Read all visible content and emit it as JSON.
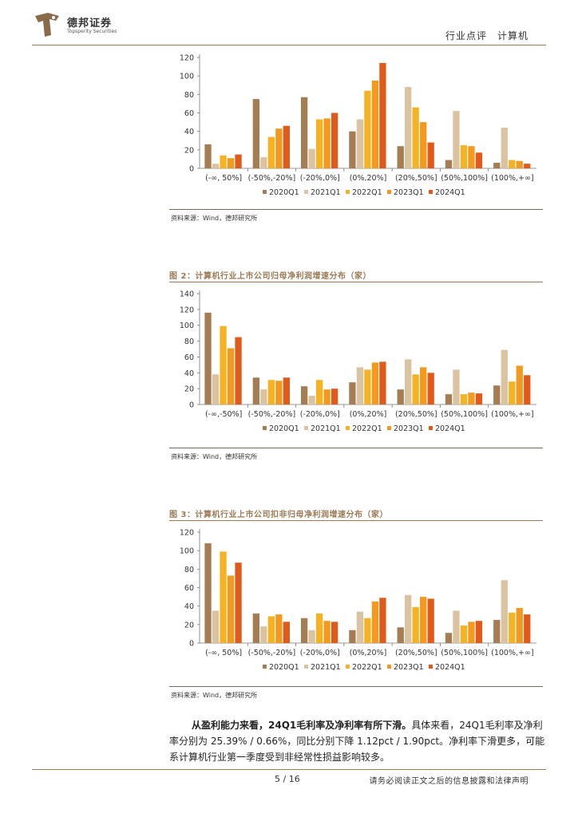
{
  "header": {
    "company_cn": "德邦证券",
    "company_en": "Topsperity Securities",
    "right": "行业点评　计算机"
  },
  "figures": [
    {
      "title": "",
      "source": "资料来源：Wind，德邦研究所"
    },
    {
      "title": "图 2：计算机行业上市公司归母净利润增速分布（家）",
      "source": "资料来源：Wind，德邦研究所"
    },
    {
      "title": "图 3：计算机行业上市公司扣非归母净利润增速分布（家）",
      "source": "资料来源：Wind，德邦研究所"
    }
  ],
  "colors": {
    "2020Q1": "#a67c52",
    "2021Q1": "#d9c3a0",
    "2022Q1": "#f5b323",
    "2023Q1": "#f39a1e",
    "2024Q1": "#e05a1b",
    "accent": "#9b7a55"
  },
  "chart_data": [
    {
      "type": "bar",
      "categories": [
        "(-∞, 50%]",
        "(-50%,-20%]",
        "(-20%,0%]",
        "(0%,20%]",
        "(20%,50%]",
        "(50%,100%]",
        "(100%,+∞]"
      ],
      "ylim": [
        0,
        120
      ],
      "yticks": [
        0,
        20,
        40,
        60,
        80,
        100,
        120
      ],
      "legend_position": "bottom",
      "series": [
        {
          "name": "2020Q1",
          "values": [
            26,
            75,
            77,
            40,
            24,
            9,
            6
          ]
        },
        {
          "name": "2021Q1",
          "values": [
            5,
            12,
            21,
            53,
            88,
            62,
            44
          ]
        },
        {
          "name": "2022Q1",
          "values": [
            14,
            34,
            53,
            84,
            66,
            25,
            9
          ]
        },
        {
          "name": "2023Q1",
          "values": [
            11,
            43,
            54,
            95,
            50,
            24,
            8
          ]
        },
        {
          "name": "2024Q1",
          "values": [
            15,
            46,
            60,
            114,
            28,
            17,
            5
          ]
        }
      ]
    },
    {
      "type": "bar",
      "categories": [
        "(-∞,-50%]",
        "(-50%,-20%]",
        "(-20%,0%]",
        "(0%,20%]",
        "(20%,50%]",
        "(50%,100%]",
        "(100%,+∞]"
      ],
      "ylim": [
        0,
        140
      ],
      "yticks": [
        0,
        20,
        40,
        60,
        80,
        100,
        120,
        140
      ],
      "legend_position": "bottom",
      "series": [
        {
          "name": "2020Q1",
          "values": [
            116,
            34,
            23,
            28,
            19,
            13,
            24
          ]
        },
        {
          "name": "2021Q1",
          "values": [
            38,
            19,
            11,
            47,
            57,
            44,
            69
          ]
        },
        {
          "name": "2022Q1",
          "values": [
            99,
            31,
            31,
            44,
            38,
            13,
            29
          ]
        },
        {
          "name": "2023Q1",
          "values": [
            71,
            30,
            19,
            53,
            47,
            15,
            49
          ]
        },
        {
          "name": "2024Q1",
          "values": [
            85,
            34,
            20,
            54,
            40,
            14,
            37
          ]
        }
      ]
    },
    {
      "type": "bar",
      "categories": [
        "(-∞, 50%]",
        "(-50%,-20%]",
        "(-20%,0%]",
        "(0%,20%]",
        "(20%,50%]",
        "(50%,100%]",
        "(100%,+∞]"
      ],
      "ylim": [
        0,
        120
      ],
      "yticks": [
        0,
        20,
        40,
        60,
        80,
        100,
        120
      ],
      "legend_position": "bottom",
      "series": [
        {
          "name": "2020Q1",
          "values": [
            108,
            32,
            27,
            14,
            17,
            11,
            25
          ]
        },
        {
          "name": "2021Q1",
          "values": [
            35,
            18,
            14,
            34,
            52,
            35,
            68
          ]
        },
        {
          "name": "2022Q1",
          "values": [
            99,
            29,
            32,
            27,
            39,
            19,
            33
          ]
        },
        {
          "name": "2023Q1",
          "values": [
            73,
            31,
            24,
            45,
            50,
            23,
            38
          ]
        },
        {
          "name": "2024Q1",
          "values": [
            87,
            23,
            23,
            49,
            48,
            24,
            31
          ]
        }
      ]
    }
  ],
  "body": {
    "bold": "从盈利能力来看，24Q1毛利率及净利率有所下滑。",
    "text": "具体来看，24Q1毛利率及净利率分别为 25.39% / 0.66%，同比分别下降 1.12pct / 1.90pct。净利率下滑更多，可能系计算机行业第一季度受到非经常性损益影响较多。"
  },
  "footer": {
    "page": "5 / 16",
    "disclaimer": "请务必阅读正文之后的信息披露和法律声明"
  }
}
